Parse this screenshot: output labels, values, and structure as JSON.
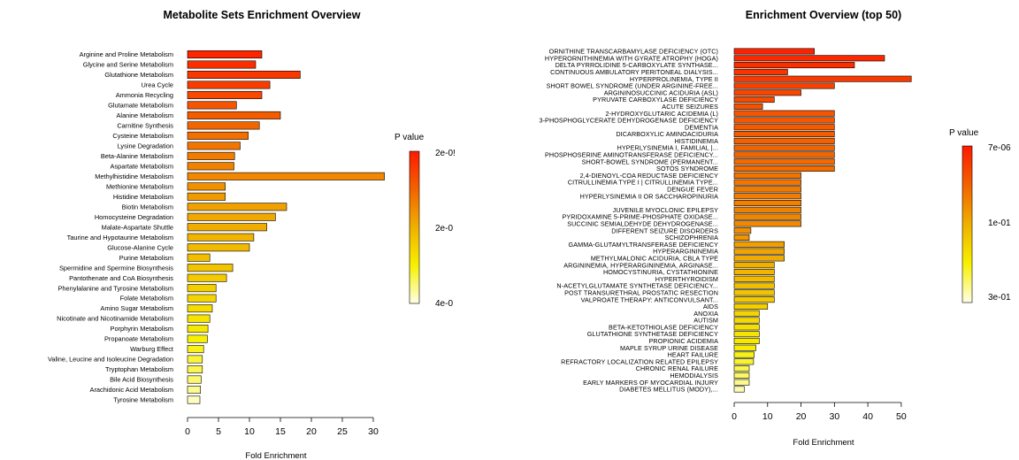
{
  "chart_data": [
    {
      "type": "bar",
      "orientation": "horizontal",
      "title": "Metabolite Sets Enrichment Overview",
      "xlabel": "Fold Enrichment",
      "xlim": [
        0,
        32
      ],
      "xticks": [
        "0",
        "5",
        "10",
        "15",
        "20",
        "25",
        "30"
      ],
      "color_scale": "p-value (red = low, white = high)",
      "legend": {
        "title": "P value",
        "labels": [
          "2e-0!",
          "2e-0",
          "4e-0"
        ],
        "position": "right"
      },
      "categories": [
        "Arginine and Proline Metabolism",
        "Glycine and Serine Metabolism",
        "Glutathione Metabolism",
        "Urea Cycle",
        "Ammonia Recycling",
        "Glutamate Metabolism",
        "Alanine Metabolism",
        "Carnitine Synthesis",
        "Cysteine Metabolism",
        "Lysine Degradation",
        "Beta-Alanine Metabolism",
        "Aspartate Metabolism",
        "Methylhistidine Metabolism",
        "Methionine Metabolism",
        "Histidine Metabolism",
        "Biotin Metabolism",
        "Homocysteine Degradation",
        "Malate-Aspartate Shuttle",
        "Taurine and Hypotaurine Metabolism",
        "Glucose-Alanine Cycle",
        "Purine Metabolism",
        "Spermidine and Spermine Biosynthesis",
        "Pantothenate and CoA Biosynthesis",
        "Phenylalanine and Tyrosine Metabolism",
        "Folate Metabolism",
        "Amino Sugar Metabolism",
        "Nicotinate and Nicotinamide Metabolism",
        "Porphyrin Metabolism",
        "Propanoate Metabolism",
        "Warburg Effect",
        "Valine, Leucine and Isoleucine Degradation",
        "Tryptophan Metabolism",
        "Bile Acid Biosynthesis",
        "Arachidonic Acid Metabolism",
        "Tyrosine Metabolism"
      ],
      "values": [
        12.0,
        11.0,
        18.2,
        13.3,
        12.0,
        7.9,
        15.0,
        11.6,
        9.8,
        8.5,
        7.6,
        7.5,
        31.8,
        6.1,
        6.1,
        16.0,
        14.2,
        12.8,
        10.7,
        10.0,
        3.6,
        7.3,
        6.3,
        4.6,
        4.6,
        4.0,
        3.6,
        3.3,
        3.2,
        2.6,
        2.4,
        2.4,
        2.2,
        2.1,
        2.0
      ],
      "color_levels": [
        0.04,
        0.07,
        0.1,
        0.12,
        0.16,
        0.2,
        0.23,
        0.26,
        0.29,
        0.31,
        0.33,
        0.35,
        0.37,
        0.4,
        0.43,
        0.45,
        0.47,
        0.49,
        0.51,
        0.54,
        0.56,
        0.58,
        0.6,
        0.62,
        0.64,
        0.67,
        0.7,
        0.72,
        0.75,
        0.78,
        0.81,
        0.84,
        0.87,
        0.91,
        0.96
      ]
    },
    {
      "type": "bar",
      "orientation": "horizontal",
      "title": "Enrichment Overview (top 50)",
      "xlabel": "Fold Enrichment",
      "xlim": [
        0,
        54
      ],
      "xticks": [
        "0",
        "10",
        "20",
        "30",
        "40",
        "50"
      ],
      "color_scale": "p-value (red = low, white = high)",
      "legend": {
        "title": "P value",
        "labels": [
          "7e-06",
          "1e-01",
          "3e-01"
        ],
        "position": "right"
      },
      "categories": [
        "ORNITHINE TRANSCARBAMYLASE DEFICIENCY (OTC)",
        "HYPERORNITHINEMIA WITH GYRATE ATROPHY (HOGA)",
        "DELTA PYRROLIDINE 5-CARBOXYLATE SYNTHASE...",
        "CONTINUOUS AMBULATORY PERITONEAL DIALYSIS...",
        "HYPERPROLINEMIA, TYPE II",
        "SHORT BOWEL SYNDROME (UNDER ARGININE-FREE...",
        "ARGININOSUCCINIC ACIDURIA (ASL)",
        "PYRUVATE CARBOXYLASE DEFICIENCY",
        "ACUTE SEIZURES",
        "2-HYDROXYGLUTARIC ACIDEMIA (L)",
        "3-PHOSPHOGLYCERATE DEHYDROGENASE DEFICIENCY",
        "DEMENTIA",
        "DICARBOXYLIC AMINOACIDURIA",
        "HISTIDINEMIA",
        "HYPERLYSINEMIA I, FAMILIAL |...",
        "PHOSPHOSERINE AMINOTRANSFERASE DEFICIENCY...",
        "SHORT-BOWEL SYNDROME (PERMANENT...",
        "SOTOS SYNDROME",
        "2,4-DIENOYL-COA REDUCTASE DEFICIENCY",
        "CITRULLINEMIA TYPE I | CITRULLINEMIA TYPE...",
        "DENGUE FEVER",
        "HYPERLYSINEMIA II OR SACCHAROPINURIA",
        "",
        "JUVENILE MYOCLONIC EPILEPSY",
        "PYRIDOXAMINE 5-PRIME-PHOSPHATE OXIDASE...",
        "SUCCINIC SEMIALDEHYDE DEHYDROGENASE...",
        "DIFFERENT SEIZURE DISORDERS",
        "SCHIZOPHRENIA",
        "GAMMA-GLUTAMYLTRANSFERASE DEFICIENCY",
        "HYPERARGININEMIA",
        "METHYLMALONIC ACIDURIA, CBLA TYPE",
        "ARGININEMIA, HYPERARGININEMIA, ARGINASE...",
        "HOMOCYSTINURIA, CYSTATHIONINE",
        "HYPERTHYROIDISM",
        "N-ACETYLGLUTAMATE SYNTHETASE DEFICIENCY...",
        "POST TRANSURETHRAL PROSTATIC RESECTION",
        "VALPROATE THERAPY: ANTICONVULSANT...",
        "AIDS",
        "ANOXIA",
        "AUTISM",
        "BETA-KETOTHIOLASE DEFICIENCY",
        "GLUTATHIONE SYNTHETASE DEFICIENCY",
        "PROPIONIC ACIDEMIA",
        "MAPLE SYRUP URINE DISEASE",
        "HEART FAILURE",
        "REFRACTORY LOCALIZATION RELATED EPILEPSY",
        "CHRONIC RENAL FAILURE",
        "HEMODIALYSIS",
        "EARLY MARKERS OF MYOCARDIAL INJURY",
        "DIABETES MELLITUS (MODY),..."
      ],
      "values": [
        24,
        45,
        36,
        16,
        53,
        30,
        20,
        12,
        8.5,
        30,
        30,
        30,
        30,
        30,
        30,
        30,
        30,
        30,
        20,
        20,
        20,
        20,
        20,
        20,
        20,
        20,
        5,
        4.5,
        15,
        15,
        15,
        12,
        12,
        12,
        12,
        12,
        12,
        10,
        7.5,
        7.5,
        7.5,
        7.5,
        7.5,
        6.5,
        6,
        5.8,
        4.5,
        4.5,
        4.5,
        3
      ],
      "color_levels": [
        0.03,
        0.05,
        0.07,
        0.09,
        0.11,
        0.13,
        0.15,
        0.17,
        0.19,
        0.2,
        0.21,
        0.22,
        0.23,
        0.24,
        0.25,
        0.26,
        0.27,
        0.28,
        0.3,
        0.31,
        0.32,
        0.33,
        0.34,
        0.35,
        0.36,
        0.37,
        0.39,
        0.41,
        0.44,
        0.46,
        0.48,
        0.5,
        0.52,
        0.54,
        0.56,
        0.58,
        0.6,
        0.62,
        0.64,
        0.66,
        0.68,
        0.7,
        0.72,
        0.74,
        0.77,
        0.8,
        0.83,
        0.86,
        0.9,
        0.94
      ]
    }
  ]
}
